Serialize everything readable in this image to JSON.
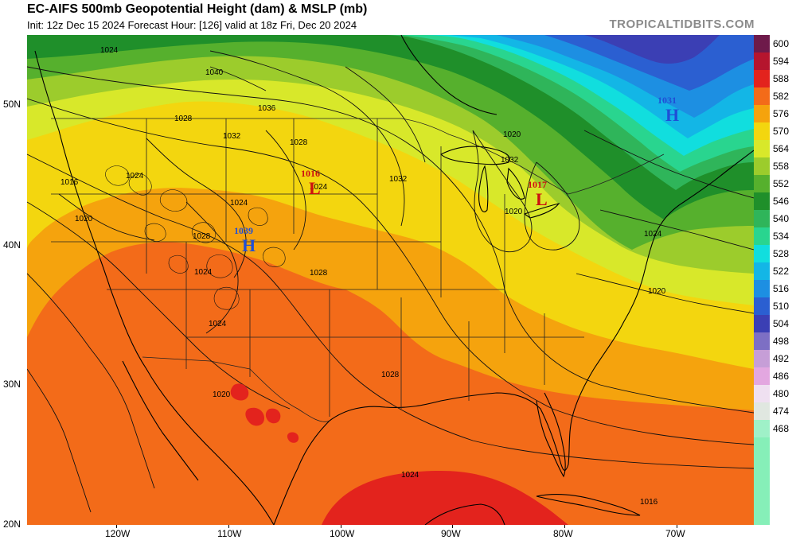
{
  "header": {
    "title": "EC-AIFS 500mb Geopotential Height (dam) & MSLP (mb)",
    "subtitle": "Init: 12z Dec 15 2024   Forecast Hour: [126]   valid at 18z Fri, Dec 20 2024",
    "brand": "TROPICALTIDBITS.COM"
  },
  "colorbar": {
    "levels": [
      "600",
      "594",
      "588",
      "582",
      "576",
      "570",
      "564",
      "558",
      "552",
      "546",
      "540",
      "534",
      "528",
      "522",
      "516",
      "510",
      "504",
      "498",
      "492",
      "486",
      "480",
      "474",
      "468"
    ],
    "colors": [
      "#6e1a4a",
      "#b5152e",
      "#e3231d",
      "#f36b19",
      "#f5a30d",
      "#f3d60f",
      "#d8e82a",
      "#9ccc2c",
      "#56b02d",
      "#1f8f2a",
      "#2fb55a",
      "#29d58f",
      "#11dede",
      "#13b6e6",
      "#1d8fe2",
      "#2b5fd1",
      "#3b3fb4",
      "#7d6fc4",
      "#c69ed7",
      "#e3a7e0",
      "#efe0f1",
      "#e0e7e0",
      "#9ff1c8"
    ]
  },
  "axes": {
    "lat_labels": [
      "50N",
      "40N",
      "30N",
      "20N"
    ],
    "lon_labels": [
      "120W",
      "110W",
      "100W",
      "90W",
      "80W",
      "70W"
    ]
  },
  "pressure_centers": [
    {
      "value": "1016",
      "letter": "L",
      "type": "low"
    },
    {
      "value": "1017",
      "letter": "L",
      "type": "low"
    },
    {
      "value": "1039",
      "letter": "H",
      "type": "high"
    },
    {
      "value": "1031",
      "letter": "H",
      "type": "high"
    }
  ],
  "isobar_labels": [
    "1024",
    "1040",
    "1036",
    "1028",
    "1032",
    "1024",
    "1016",
    "1020",
    "1028",
    "1032",
    "1024",
    "1028",
    "1020",
    "1028",
    "1032",
    "1024",
    "1020",
    "1028",
    "1024",
    "1020",
    "1024",
    "1016",
    "1020",
    "1024",
    "1024"
  ]
}
